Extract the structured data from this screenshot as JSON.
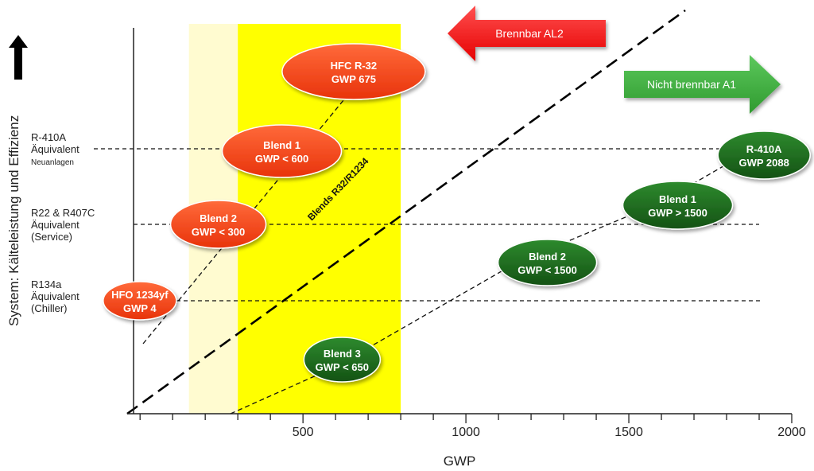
{
  "chart_data": {
    "type": "scatter",
    "xlabel": "GWP",
    "ylabel": "System: Kälteleistung und Effizienz",
    "xlim": [
      -20,
      2000
    ],
    "x_ticks": [
      500,
      1000,
      1500,
      2000
    ],
    "x_minor_step": 100,
    "levels": [
      {
        "name": "R134a",
        "lines": [
          "R134a",
          "Äquivalent",
          "(Chiller)"
        ]
      },
      {
        "name": "R22",
        "lines": [
          "R22 & R407C",
          "Äquivalent",
          "(Service)"
        ]
      },
      {
        "name": "R410A",
        "lines": [
          "R-410A",
          "Äquivalent",
          "Neuanlagen"
        ]
      }
    ],
    "bands": [
      {
        "from": 150,
        "to": 300,
        "color": "#fffbd0"
      },
      {
        "from": 300,
        "to": 800,
        "color": "#ffff00"
      }
    ],
    "series": [
      {
        "color": "#ee4411",
        "points": [
          {
            "x": 4,
            "level": "R134a",
            "lines": [
              "HFO 1234yf",
              "GWP 4"
            ]
          },
          {
            "x": 240,
            "level": "R22",
            "lines": [
              "Blend 2",
              "GWP < 300"
            ]
          },
          {
            "x": 440,
            "level": "R410A",
            "lines": [
              "Blend 1",
              "GWP < 600"
            ]
          },
          {
            "x": 675,
            "level": "top",
            "lines": [
              "HFC R-32",
              "GWP 675"
            ]
          }
        ]
      },
      {
        "color": "#1a6b1a",
        "points": [
          {
            "x": 620,
            "level": "low",
            "lines": [
              "Blend 3",
              "GWP < 650"
            ]
          },
          {
            "x": 1250,
            "level": "mid-low",
            "lines": [
              "Blend 2",
              "GWP < 1500"
            ]
          },
          {
            "x": 1650,
            "level": "mid-high",
            "lines": [
              "Blend 1",
              "GWP > 1500"
            ]
          },
          {
            "x": 1915,
            "level": "R410A-high",
            "lines": [
              "R-410A",
              "GWP 2088"
            ]
          }
        ]
      }
    ],
    "diagonal_label": "Blends R32/R1234",
    "annotations": [
      {
        "text": "Brennbar AL2",
        "direction": "left",
        "color": "#ff1a1a"
      },
      {
        "text": "Nicht brennbar A1",
        "direction": "right",
        "color": "#3aa83a"
      }
    ]
  }
}
